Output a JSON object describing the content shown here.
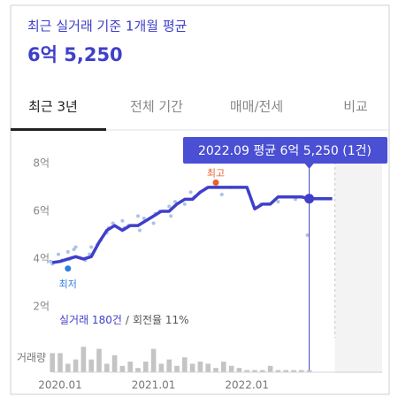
{
  "header": {
    "subtitle": "최근 실거래 기준 1개월 평균",
    "price": "6억 5,250"
  },
  "tabs": [
    "최근 3년",
    "전체 기간",
    "매매/전세",
    "비교"
  ],
  "active_tab": 0,
  "chart_data": {
    "type": "line",
    "tooltip": "2022.09 평균 6억 5,250 (1건)",
    "categories": [
      null,
      "2020.01",
      null,
      null,
      null,
      null,
      null,
      null,
      null,
      null,
      null,
      null,
      null,
      "2021.01",
      null,
      null,
      null,
      null,
      null,
      null,
      null,
      null,
      null,
      null,
      null,
      "2022.01",
      null,
      null,
      null,
      null,
      null,
      null,
      null,
      null
    ],
    "values": [
      3.85,
      3.9,
      4.0,
      4.1,
      4.0,
      4.1,
      4.7,
      5.2,
      5.4,
      5.2,
      5.4,
      5.4,
      5.6,
      5.8,
      6.0,
      6.0,
      6.3,
      6.5,
      6.5,
      6.8,
      7.0,
      7.0,
      7.0,
      7.0,
      7.0,
      7.0,
      6.1,
      6.3,
      6.3,
      6.6,
      6.6,
      6.6,
      6.6,
      6.525
    ],
    "color": "#3f3fc9",
    "scatter": {
      "x": [
        0,
        0,
        1,
        1,
        2,
        2,
        3,
        3,
        4,
        5,
        5,
        6,
        6,
        7,
        7,
        8,
        9,
        9,
        10,
        11,
        11,
        12,
        13,
        13,
        14,
        15,
        15,
        16,
        17,
        18,
        18,
        19,
        21,
        22,
        23,
        25,
        27,
        29,
        31,
        33
      ],
      "values": [
        3.9,
        3.8,
        3.95,
        4.2,
        4.3,
        4.0,
        4.4,
        4.5,
        3.95,
        4.2,
        4.5,
        4.8,
        4.6,
        5.1,
        5.3,
        5.5,
        5.6,
        5.3,
        5.4,
        5.8,
        5.2,
        5.7,
        5.5,
        5.9,
        6.0,
        6.2,
        5.8,
        6.4,
        6.3,
        6.6,
        6.8,
        6.8,
        7.0,
        6.7,
        7.0,
        6.8,
        6.3,
        6.4,
        6.5,
        5.0
      ],
      "color": "#a9c3e6"
    },
    "max": {
      "label": "최고",
      "x": 21,
      "value": 7.2,
      "color": "#e8622c"
    },
    "min": {
      "label": "최저",
      "x": 2,
      "value": 3.6,
      "color": "#2f7fe0"
    },
    "ylim": [
      2,
      8.7
    ],
    "yticks": [
      {
        "value": 8,
        "label": "8억"
      },
      {
        "value": 6,
        "label": "6억"
      },
      {
        "value": 4,
        "label": "4억"
      },
      {
        "value": 2,
        "label": "2억"
      }
    ],
    "grid": false,
    "stats": {
      "trades": "실거래 180건",
      "separator": "/",
      "turnover": "회전율 11%"
    },
    "volume": {
      "label": "거래량",
      "values": [
        9,
        9,
        4,
        6,
        12,
        6,
        11,
        4,
        8,
        3,
        5,
        2,
        5,
        11,
        4,
        6,
        3,
        7,
        4,
        5,
        4,
        2,
        5,
        3,
        2,
        1,
        1,
        1,
        3,
        1,
        1,
        1,
        1,
        1
      ],
      "color": "#c4c4c4"
    }
  }
}
